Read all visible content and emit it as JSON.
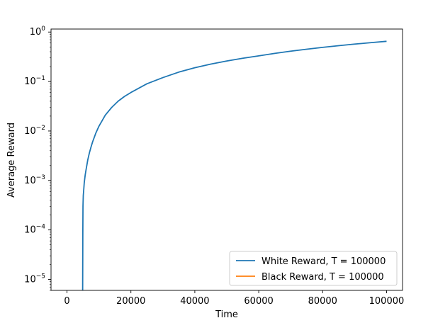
{
  "chart_data": {
    "type": "line",
    "title": "",
    "xlabel": "Time",
    "ylabel": "Average Reward",
    "xlim": [
      -5000,
      105000
    ],
    "ylim": [
      6e-06,
      1.15
    ],
    "yscale": "log",
    "x_ticks": [
      0,
      20000,
      40000,
      60000,
      80000,
      100000
    ],
    "x_tick_labels": [
      "0",
      "20000",
      "40000",
      "60000",
      "80000",
      "100000"
    ],
    "y_ticks": [
      {
        "value": 1e-05,
        "base": "10",
        "exp": "−5"
      },
      {
        "value": 0.0001,
        "base": "10",
        "exp": "−4"
      },
      {
        "value": 0.001,
        "base": "10",
        "exp": "−3"
      },
      {
        "value": 0.01,
        "base": "10",
        "exp": "−2"
      },
      {
        "value": 0.1,
        "base": "10",
        "exp": "−1"
      },
      {
        "value": 1,
        "base": "10",
        "exp": "0"
      }
    ],
    "legend_position": "bottom-right",
    "grid": false,
    "series": [
      {
        "name": "White Reward, T = 100000",
        "color": "#1f77b4",
        "x": [
          4900,
          4950,
          5000,
          5100,
          5200,
          5400,
          5700,
          6000,
          6500,
          7000,
          7500,
          8000,
          9000,
          10000,
          12000,
          14000,
          16000,
          18000,
          20000,
          25000,
          30000,
          35000,
          40000,
          45000,
          50000,
          55000,
          60000,
          65000,
          70000,
          75000,
          80000,
          85000,
          90000,
          95000,
          100000
        ],
        "values": [
          6e-06,
          8e-05,
          0.0003,
          0.0005,
          0.0006,
          0.0009,
          0.0013,
          0.0017,
          0.0026,
          0.0036,
          0.0047,
          0.006,
          0.009,
          0.0125,
          0.021,
          0.03,
          0.04,
          0.05,
          0.06,
          0.09,
          0.12,
          0.155,
          0.19,
          0.225,
          0.26,
          0.295,
          0.33,
          0.37,
          0.41,
          0.45,
          0.49,
          0.53,
          0.57,
          0.61,
          0.65
        ]
      },
      {
        "name": "Black Reward, T = 100000",
        "color": "#ff7f0e",
        "x": [],
        "values": []
      }
    ]
  }
}
